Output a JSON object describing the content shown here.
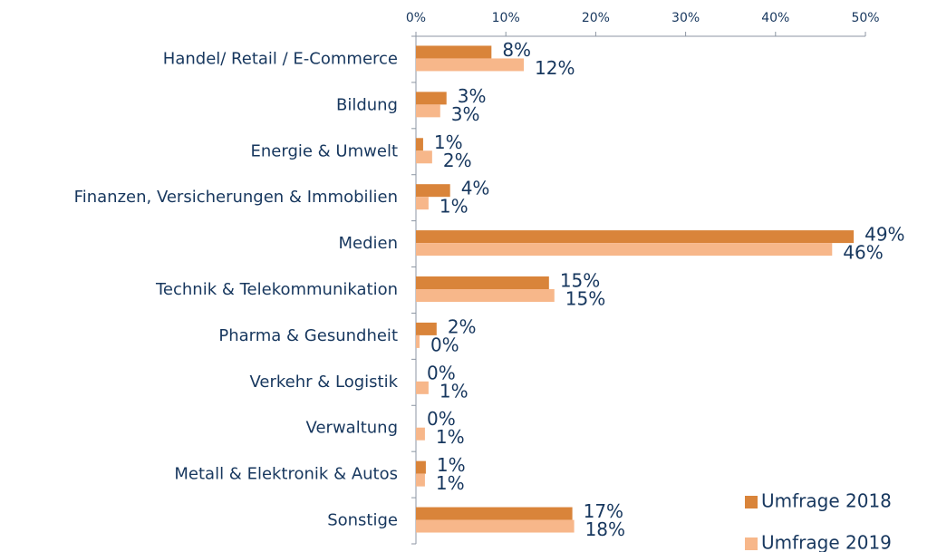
{
  "chart_data": {
    "type": "hbar",
    "categories": [
      "Handel/ Retail / E-Commerce",
      "Bildung",
      "Energie & Umwelt",
      "Finanzen, Versicherungen & Immobilien",
      "Medien",
      "Technik & Telekommunikation",
      "Pharma & Gesundheit",
      "Verkehr & Logistik",
      "Verwaltung",
      "Metall & Elektronik & Autos",
      "Sonstige"
    ],
    "series": [
      {
        "name": "Umfrage 2018",
        "color": "#d9843a",
        "values": [
          8.4,
          3.4,
          0.8,
          3.8,
          48.7,
          14.8,
          2.3,
          0,
          0,
          1.1,
          17.4
        ],
        "value_labels": [
          "8%",
          "3%",
          "1%",
          "4%",
          "49%",
          "15%",
          "2%",
          "0%",
          "0%",
          "1%",
          "17%"
        ]
      },
      {
        "name": "Umfrage 2019",
        "color": "#f7b78a",
        "values": [
          12.0,
          2.7,
          1.8,
          1.4,
          46.3,
          15.4,
          0.4,
          1.4,
          1.0,
          1.0,
          17.6
        ],
        "value_labels": [
          "12%",
          "3%",
          "2%",
          "1%",
          "46%",
          "15%",
          "0%",
          "1%",
          "1%",
          "1%",
          "18%"
        ]
      }
    ],
    "xlim": [
      0,
      50
    ],
    "xticks": [
      {
        "value": 0,
        "label": "0%"
      },
      {
        "value": 10,
        "label": "10%"
      },
      {
        "value": 20,
        "label": "20%"
      },
      {
        "value": 30,
        "label": "30%"
      },
      {
        "value": 40,
        "label": "40%"
      },
      {
        "value": 50,
        "label": "50%"
      }
    ],
    "legend": "bottom-right"
  }
}
